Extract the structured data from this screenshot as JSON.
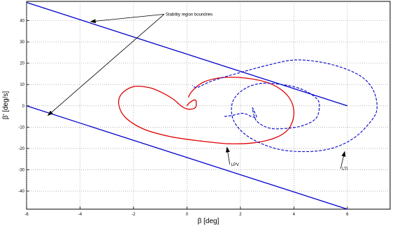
{
  "chart_data": {
    "type": "line",
    "xlabel": "β [deg]",
    "ylabel": "β' [deg/s]",
    "xlim": [
      -6,
      7.6
    ],
    "ylim": [
      -48.5,
      49
    ],
    "grid": "dotted",
    "xticks": [
      -6,
      -4,
      -2,
      0,
      2,
      4,
      6
    ],
    "yticks": [
      -40,
      -30,
      -20,
      -10,
      0,
      10,
      20,
      30,
      40
    ],
    "series": [
      {
        "id": "upper-boundary",
        "style": "solid",
        "color": "#0000cc",
        "x": [
          -6,
          6
        ],
        "y": [
          48.5,
          0
        ]
      },
      {
        "id": "lower-boundary",
        "style": "solid",
        "color": "#0000cc",
        "x": [
          -6,
          6
        ],
        "y": [
          0,
          -48.5
        ]
      },
      {
        "id": "lpv-trajectory",
        "name": "LPV",
        "style": "solid",
        "color": "#e00000",
        "x": [
          0,
          0.1,
          0.3,
          0.35,
          0.3,
          0.1,
          -0.1,
          -0.3,
          -0.5,
          -0.9,
          -1.4,
          -2.0,
          -2.45,
          -2.55,
          -2.3,
          -1.6,
          -0.6,
          0.5,
          1.6,
          2.6,
          3.4,
          3.85,
          4.0,
          3.75,
          3.1,
          2.2,
          1.3,
          0.6,
          0.2,
          0.05
        ],
        "y": [
          0,
          1.5,
          2.8,
          1.0,
          -1.0,
          -1.6,
          -1.0,
          0.8,
          3.0,
          6.0,
          8.5,
          9.0,
          5.5,
          0.5,
          -5.5,
          -11.0,
          -14.5,
          -16.5,
          -17.8,
          -17.2,
          -14.5,
          -10.0,
          -2.5,
          5.0,
          10.5,
          13.0,
          13.2,
          11.0,
          7.0,
          4.0
        ]
      },
      {
        "id": "lti-trajectory",
        "name": "LTI",
        "style": "dashed",
        "color": "#0000cc",
        "x": [
          1.4,
          1.7,
          2.1,
          2.4,
          2.6,
          2.55,
          2.45,
          2.6,
          3.1,
          3.8,
          4.4,
          4.85,
          4.95,
          4.75,
          4.25,
          3.55,
          2.75,
          2.1,
          1.7,
          1.75,
          2.3,
          3.3,
          4.4,
          5.4,
          6.2,
          6.8,
          7.1,
          7.0,
          6.6,
          5.9,
          5.0,
          4.0,
          3.0,
          2.1,
          1.4,
          0.9,
          0.55,
          0.35,
          0.2
        ],
        "y": [
          -5.0,
          -4.5,
          -3.5,
          -5.0,
          -5.5,
          -3.5,
          -1.0,
          -7.0,
          -10.5,
          -10.5,
          -9.0,
          -5.5,
          1.0,
          4.5,
          8.0,
          10.0,
          10.5,
          7.5,
          1.5,
          -7.0,
          -14.5,
          -20.0,
          -21.5,
          -20.0,
          -15.5,
          -8.5,
          -2.0,
          6.5,
          13.0,
          17.5,
          20.5,
          21.5,
          19.0,
          16.0,
          13.5,
          11.5,
          9.5,
          8.5,
          9.5
        ]
      }
    ],
    "annotations": [
      {
        "id": "stability",
        "text": "Stability region boundries",
        "x": -0.85,
        "y": 43.0,
        "targets": [
          [
            -3.6,
            39.5
          ],
          [
            -5.2,
            -4.5
          ]
        ]
      },
      {
        "id": "lpv",
        "text": "LPV",
        "x": 1.6,
        "y": -27.5,
        "targets": [
          [
            1.5,
            -19.5
          ]
        ]
      },
      {
        "id": "lti",
        "text": "LTI",
        "x": 5.75,
        "y": -29.5,
        "targets": [
          [
            5.9,
            -21.5
          ]
        ]
      }
    ]
  }
}
